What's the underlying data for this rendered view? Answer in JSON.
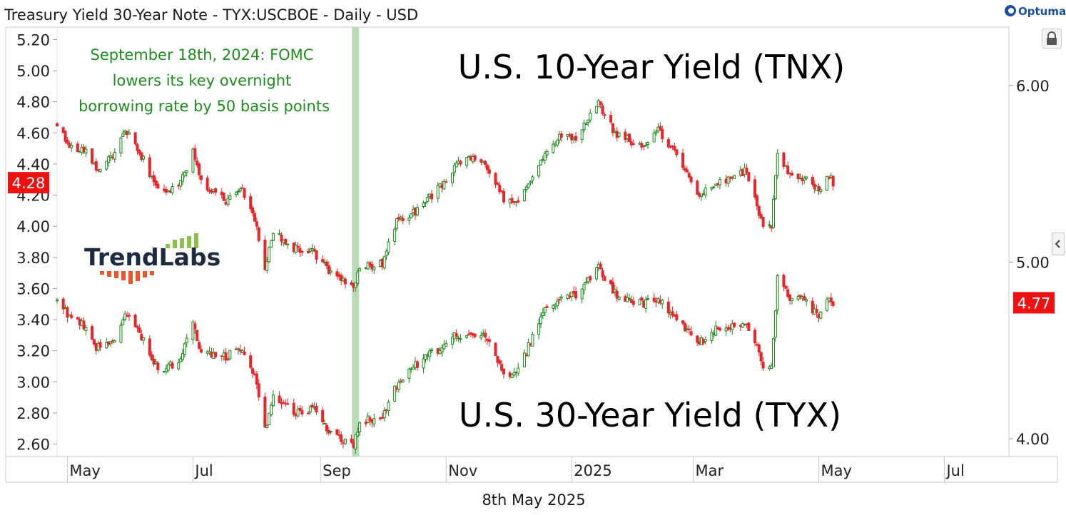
{
  "header": {
    "title": "Treasury Yield 30-Year Note - TYX:USCBOE - Daily - USD",
    "brand": "Optuma"
  },
  "footer": {
    "date": "8th May 2025"
  },
  "logo": {
    "text": "TrendLabs"
  },
  "colors": {
    "up": "#1a8a1a",
    "down": "#e8262b",
    "highlight": "#b9dcb6",
    "annotation_text": "#1e8c1e",
    "price_badge": "#ee1111"
  },
  "icons": {
    "lock": "lock-icon",
    "collapse": "chevron-left-icon"
  },
  "chart_data": {
    "type": "candlestick",
    "title": "Treasury Yield 30-Year Note - TYX:USCBOE - Daily - USD",
    "x_ticks": [
      "May",
      "Jul",
      "Sep",
      "Nov",
      "2025",
      "Mar",
      "May",
      "Jul"
    ],
    "x_range": [
      "2024-04-26",
      "2025-07-31"
    ],
    "left_axis": {
      "ylim": [
        2.52,
        5.28
      ],
      "ticks": [
        "5.20",
        "5.00",
        "4.80",
        "4.60",
        "4.40",
        "4.20",
        "4.00",
        "3.80",
        "3.60",
        "3.40",
        "3.20",
        "3.00",
        "2.80",
        "2.60"
      ]
    },
    "right_axis": {
      "ylim": [
        3.9,
        6.33
      ],
      "ticks": [
        "6.00",
        "5.00",
        "4.00"
      ]
    },
    "last_values": {
      "tnx": "4.28",
      "tyx": "4.77"
    },
    "highlight_band": {
      "date": "2024-09-18"
    },
    "annotations": [
      "September 18th, 2024: FOMC",
      "lowers its key overnight",
      "borrowing rate by 50 basis points"
    ],
    "series": [
      {
        "name": "U.S. 10-Year Yield (TNX)",
        "axis": "left",
        "anchors": [
          [
            "2024-04-26",
            4.66
          ],
          [
            "2024-05-03",
            4.5
          ],
          [
            "2024-05-10",
            4.48
          ],
          [
            "2024-05-15",
            4.36
          ],
          [
            "2024-05-24",
            4.46
          ],
          [
            "2024-05-29",
            4.62
          ],
          [
            "2024-06-07",
            4.43
          ],
          [
            "2024-06-14",
            4.22
          ],
          [
            "2024-06-24",
            4.24
          ],
          [
            "2024-07-01",
            4.48
          ],
          [
            "2024-07-05",
            4.28
          ],
          [
            "2024-07-17",
            4.16
          ],
          [
            "2024-07-24",
            4.26
          ],
          [
            "2024-07-31",
            4.04
          ],
          [
            "2024-08-05",
            3.72
          ],
          [
            "2024-08-09",
            3.96
          ],
          [
            "2024-08-19",
            3.86
          ],
          [
            "2024-08-28",
            3.84
          ],
          [
            "2024-09-06",
            3.7
          ],
          [
            "2024-09-17",
            3.62
          ],
          [
            "2024-09-20",
            3.73
          ],
          [
            "2024-10-01",
            3.76
          ],
          [
            "2024-10-08",
            4.03
          ],
          [
            "2024-10-17",
            4.09
          ],
          [
            "2024-10-31",
            4.28
          ],
          [
            "2024-11-05",
            4.38
          ],
          [
            "2024-11-13",
            4.44
          ],
          [
            "2024-11-20",
            4.41
          ],
          [
            "2024-11-29",
            4.18
          ],
          [
            "2024-12-06",
            4.15
          ],
          [
            "2024-12-18",
            4.45
          ],
          [
            "2024-12-27",
            4.59
          ],
          [
            "2025-01-03",
            4.57
          ],
          [
            "2025-01-14",
            4.79
          ],
          [
            "2025-01-22",
            4.6
          ],
          [
            "2025-02-04",
            4.51
          ],
          [
            "2025-02-12",
            4.62
          ],
          [
            "2025-02-24",
            4.4
          ],
          [
            "2025-03-04",
            4.2
          ],
          [
            "2025-03-11",
            4.27
          ],
          [
            "2025-03-27",
            4.36
          ],
          [
            "2025-04-04",
            4.0
          ],
          [
            "2025-04-08",
            4.01
          ],
          [
            "2025-04-11",
            4.48
          ],
          [
            "2025-04-17",
            4.33
          ],
          [
            "2025-04-24",
            4.31
          ],
          [
            "2025-05-01",
            4.22
          ],
          [
            "2025-05-06",
            4.33
          ],
          [
            "2025-05-08",
            4.28
          ]
        ]
      },
      {
        "name": "U.S. 30-Year Yield (TYX)",
        "axis": "right",
        "anchors": [
          [
            "2024-04-26",
            4.79
          ],
          [
            "2024-05-03",
            4.67
          ],
          [
            "2024-05-10",
            4.64
          ],
          [
            "2024-05-15",
            4.52
          ],
          [
            "2024-05-24",
            4.56
          ],
          [
            "2024-05-29",
            4.72
          ],
          [
            "2024-06-07",
            4.55
          ],
          [
            "2024-06-14",
            4.4
          ],
          [
            "2024-06-24",
            4.42
          ],
          [
            "2024-07-01",
            4.64
          ],
          [
            "2024-07-05",
            4.5
          ],
          [
            "2024-07-17",
            4.46
          ],
          [
            "2024-07-24",
            4.52
          ],
          [
            "2024-07-31",
            4.35
          ],
          [
            "2024-08-05",
            4.05
          ],
          [
            "2024-08-09",
            4.24
          ],
          [
            "2024-08-19",
            4.15
          ],
          [
            "2024-08-28",
            4.17
          ],
          [
            "2024-09-06",
            4.03
          ],
          [
            "2024-09-17",
            3.96
          ],
          [
            "2024-09-20",
            4.1
          ],
          [
            "2024-10-01",
            4.12
          ],
          [
            "2024-10-08",
            4.3
          ],
          [
            "2024-10-17",
            4.42
          ],
          [
            "2024-10-31",
            4.53
          ],
          [
            "2024-11-05",
            4.58
          ],
          [
            "2024-11-13",
            4.6
          ],
          [
            "2024-11-20",
            4.59
          ],
          [
            "2024-11-29",
            4.36
          ],
          [
            "2024-12-06",
            4.38
          ],
          [
            "2024-12-18",
            4.72
          ],
          [
            "2024-12-27",
            4.8
          ],
          [
            "2025-01-03",
            4.81
          ],
          [
            "2025-01-14",
            4.97
          ],
          [
            "2025-01-22",
            4.82
          ],
          [
            "2025-02-04",
            4.76
          ],
          [
            "2025-02-12",
            4.79
          ],
          [
            "2025-02-24",
            4.64
          ],
          [
            "2025-03-04",
            4.54
          ],
          [
            "2025-03-11",
            4.62
          ],
          [
            "2025-03-27",
            4.67
          ],
          [
            "2025-04-04",
            4.41
          ],
          [
            "2025-04-08",
            4.42
          ],
          [
            "2025-04-11",
            4.9
          ],
          [
            "2025-04-17",
            4.8
          ],
          [
            "2025-04-24",
            4.8
          ],
          [
            "2025-05-01",
            4.68
          ],
          [
            "2025-05-06",
            4.82
          ],
          [
            "2025-05-08",
            4.77
          ]
        ]
      }
    ]
  }
}
